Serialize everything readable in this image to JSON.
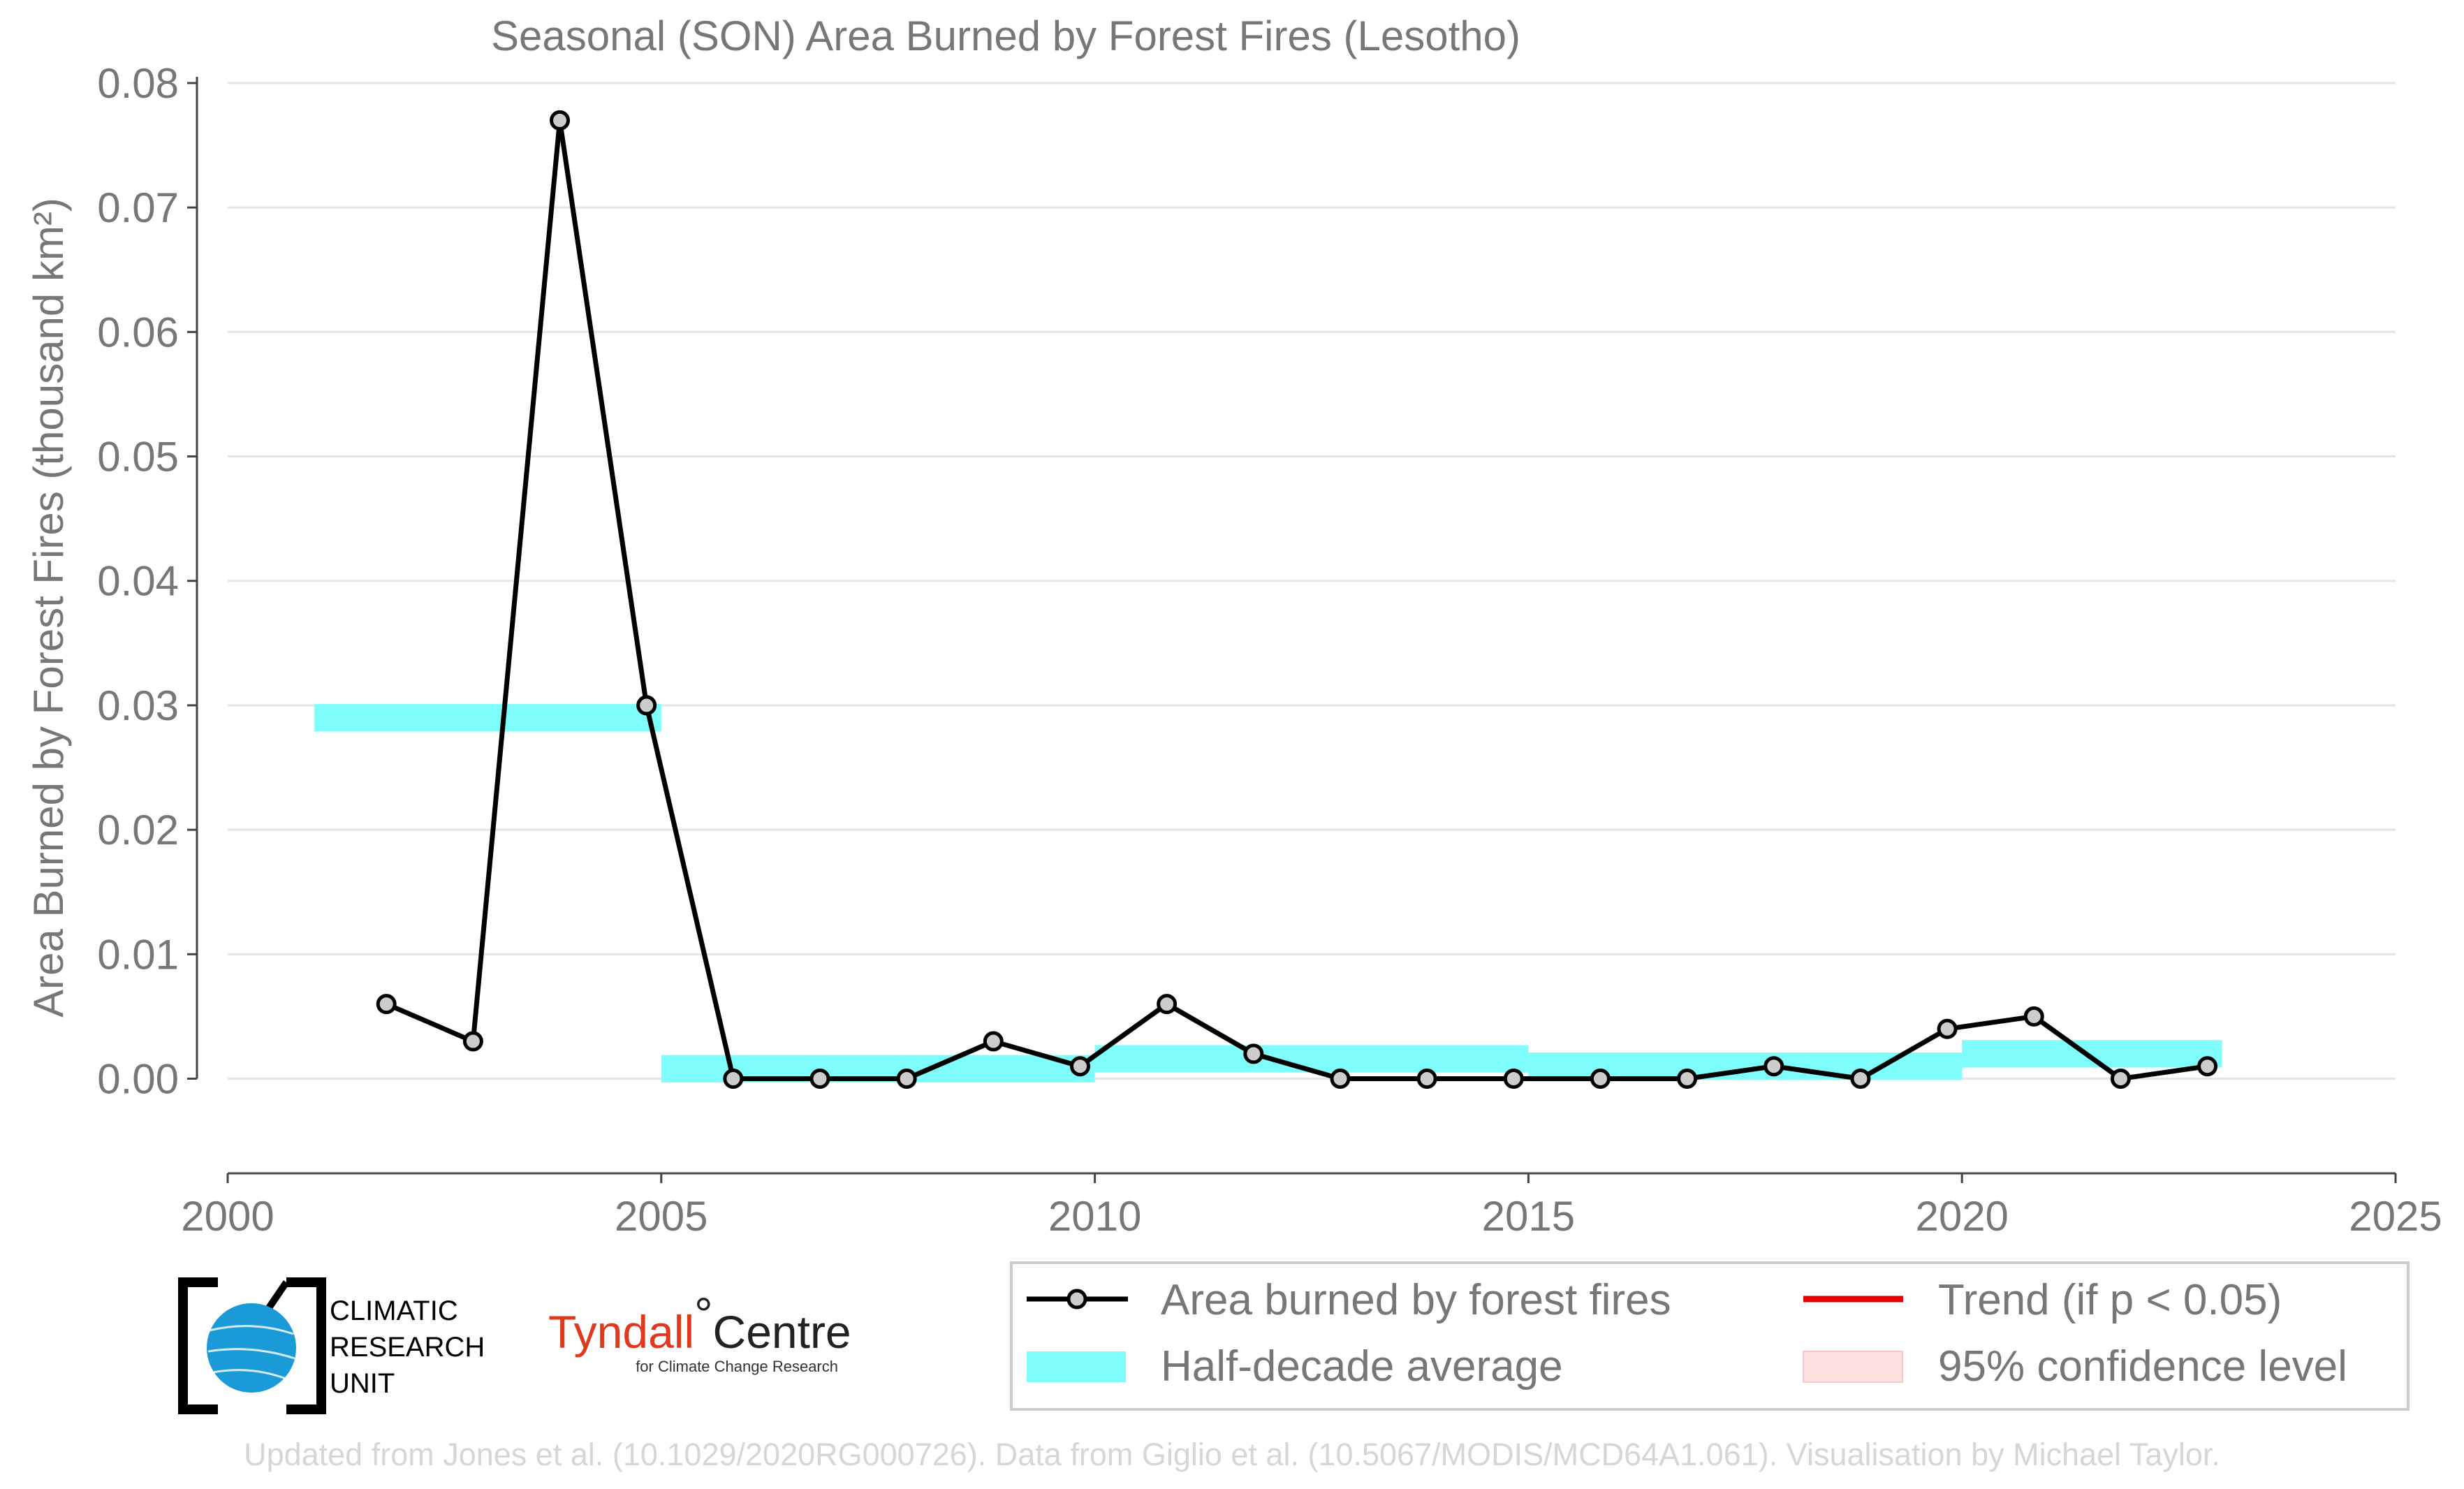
{
  "chart_data": {
    "type": "line",
    "title": "Seasonal (SON) Area Burned by Forest Fires (Lesotho)",
    "ylabel": "Area Burned by Forest Fires (thousand km²)",
    "xlabel": "",
    "xlim": [
      2000,
      2025
    ],
    "ylim": [
      -0.0062,
      0.0805
    ],
    "x_ticks": [
      "2000",
      "2005",
      "2010",
      "2015",
      "2020",
      "2025"
    ],
    "y_ticks": [
      "0.00",
      "0.01",
      "0.02",
      "0.03",
      "0.04",
      "0.05",
      "0.06",
      "0.07",
      "0.08"
    ],
    "grid": "horizontal",
    "series": [
      {
        "name": "Area burned by forest fires",
        "color": "#000000",
        "marker_fill": "#cccccc",
        "x": [
          2001.83,
          2002.83,
          2003.83,
          2004.83,
          2005.83,
          2006.83,
          2007.83,
          2008.83,
          2009.83,
          2010.83,
          2011.83,
          2012.83,
          2013.83,
          2014.83,
          2015.83,
          2016.83,
          2017.83,
          2018.83,
          2019.83,
          2020.83,
          2021.83,
          2022.83
        ],
        "y": [
          0.006,
          0.003,
          0.077,
          0.03,
          0.0,
          0.0,
          0.0,
          0.003,
          0.001,
          0.006,
          0.002,
          0.0,
          0.0,
          0.0,
          0.0,
          0.0,
          0.001,
          0.0,
          0.004,
          0.005,
          0.0,
          0.001
        ]
      }
    ],
    "half_decade_averages": {
      "name": "Half-decade average",
      "color": "#7ffcfc",
      "bands": [
        {
          "x0": 2001,
          "x1": 2005,
          "y": 0.029,
          "half_width": 0.0011
        },
        {
          "x0": 2005,
          "x1": 2010,
          "y": 0.0008,
          "half_width": 0.0011
        },
        {
          "x0": 2010,
          "x1": 2015,
          "y": 0.0016,
          "half_width": 0.0011
        },
        {
          "x0": 2015,
          "x1": 2020,
          "y": 0.001,
          "half_width": 0.0011
        },
        {
          "x0": 2020,
          "x1": 2023,
          "y": 0.002,
          "half_width": 0.0011
        }
      ]
    },
    "legend": {
      "placement": "bottom-right",
      "entries": [
        {
          "label": "Area burned by forest fires",
          "kind": "line-marker",
          "color": "#000000"
        },
        {
          "label": "Trend (if p < 0.05)",
          "kind": "line",
          "color": "#e00000"
        },
        {
          "label": "Half-decade average",
          "kind": "band",
          "color": "#7ffcfc"
        },
        {
          "label": "95% confidence level",
          "kind": "band",
          "color": "#fde0e0"
        }
      ]
    }
  },
  "logos": {
    "cru_lines": [
      "CLIMATIC",
      "RESEARCH",
      "UNIT"
    ],
    "tyndall_main": "Tyndall",
    "tyndall_degree": "°",
    "tyndall_centre": "Centre",
    "tyndall_sub": "for Climate Change Research"
  },
  "footer": "Updated from Jones et al. (10.1029/2020RG000726). Data from Giglio et al. (10.5067/MODIS/MCD64A1.061). Visualisation by Michael Taylor."
}
